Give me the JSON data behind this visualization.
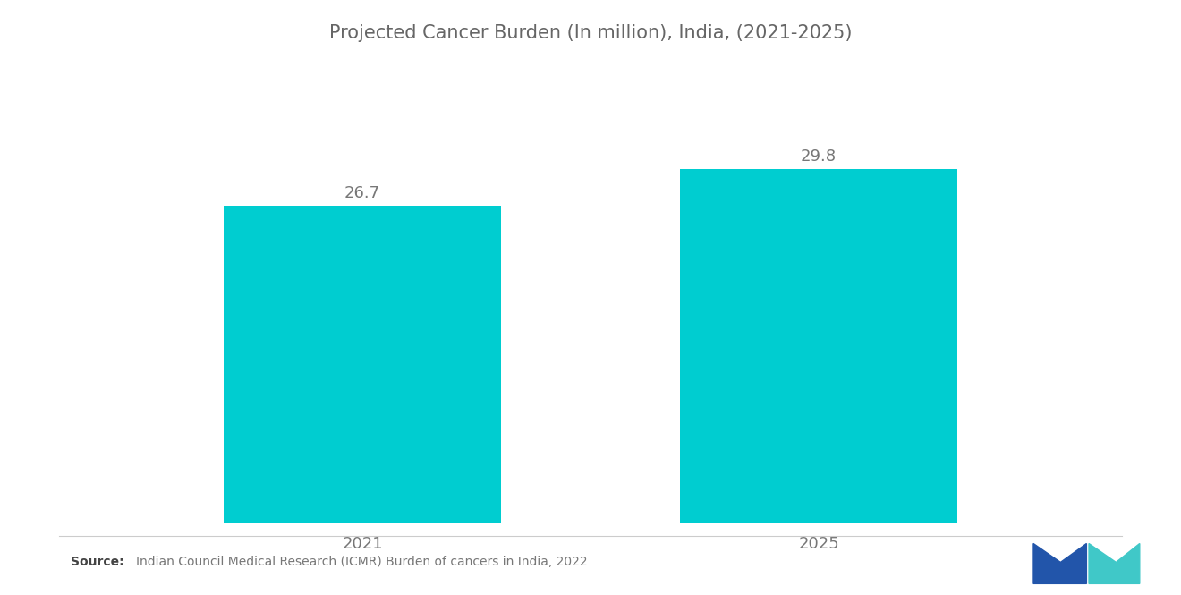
{
  "title": "Projected Cancer Burden (In million), India, (2021-2025)",
  "categories": [
    "2021",
    "2025"
  ],
  "values": [
    26.7,
    29.8
  ],
  "bar_color": "#00CDD0",
  "bar_width": 0.28,
  "title_fontsize": 15,
  "tick_fontsize": 13,
  "value_fontsize": 13,
  "background_color": "#ffffff",
  "source_bold": "Source:",
  "source_text": "  Indian Council Medical Research (ICMR) Burden of cancers in India, 2022",
  "ylim": [
    0,
    35
  ],
  "bar_positions": [
    0.27,
    0.73
  ]
}
